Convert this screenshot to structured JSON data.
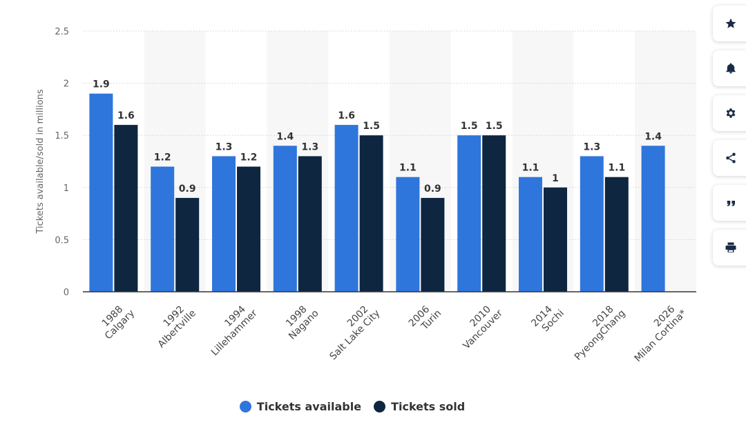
{
  "chart_data": {
    "type": "bar",
    "ylabel": "Tickets available/sold in millions",
    "ylim": [
      0,
      2.5
    ],
    "yticks": [
      0,
      0.5,
      1,
      1.5,
      2,
      2.5
    ],
    "ytick_labels": [
      "0",
      "0.5",
      "1",
      "1.5",
      "2",
      "2.5"
    ],
    "categories": [
      [
        "1988",
        "Calgary"
      ],
      [
        "1992",
        "Albertville"
      ],
      [
        "1994",
        "Lillehammer"
      ],
      [
        "1998",
        "Nagano"
      ],
      [
        "2002",
        "Salt Lake City"
      ],
      [
        "2006",
        "Turin"
      ],
      [
        "2010",
        "Vancouver"
      ],
      [
        "2014",
        "Sochi"
      ],
      [
        "2018",
        "PyeongChang"
      ],
      [
        "2026",
        "Milan Cortina*"
      ]
    ],
    "series": [
      {
        "name": "Tickets available",
        "color": "#2f76dc",
        "values": [
          1.9,
          1.2,
          1.3,
          1.4,
          1.6,
          1.1,
          1.5,
          1.1,
          1.3,
          1.4
        ],
        "labels": [
          "1.9",
          "1.2",
          "1.3",
          "1.4",
          "1.6",
          "1.1",
          "1.5",
          "1.1",
          "1.3",
          "1.4"
        ]
      },
      {
        "name": "Tickets sold",
        "color": "#0e2640",
        "values": [
          1.6,
          0.9,
          1.2,
          1.3,
          1.5,
          0.9,
          1.5,
          1.0,
          1.1,
          null
        ],
        "labels": [
          "1.6",
          "0.9",
          "1.2",
          "1.3",
          "1.5",
          "0.9",
          "1.5",
          "1",
          "1.1",
          null
        ]
      }
    ],
    "grid": true,
    "legend_position": "bottom-center"
  },
  "legend": {
    "items": [
      {
        "label": "Tickets available",
        "color": "#2f76dc"
      },
      {
        "label": "Tickets sold",
        "color": "#0e2640"
      }
    ]
  },
  "toolbar": {
    "buttons": [
      {
        "icon": "star-icon"
      },
      {
        "icon": "bell-icon"
      },
      {
        "icon": "gear-icon"
      },
      {
        "icon": "share-icon"
      },
      {
        "icon": "quote-icon"
      },
      {
        "icon": "print-icon"
      }
    ]
  }
}
